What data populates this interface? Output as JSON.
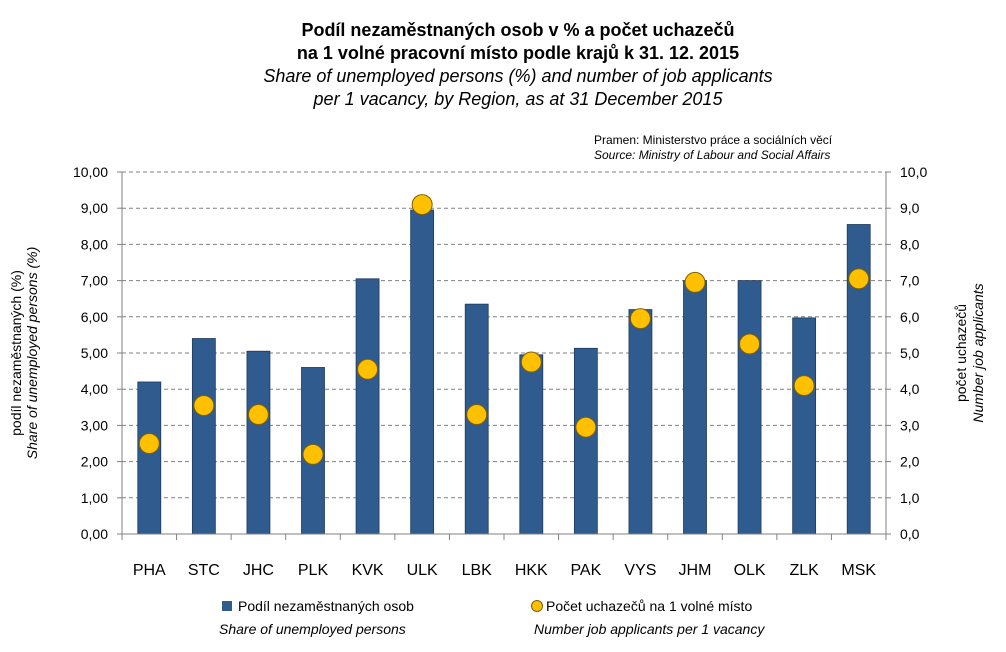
{
  "chart_data": {
    "type": "bar",
    "title": "Podíl nezaměstnaných osob v % a počet uchazečů",
    "title_line2": "na 1 volné pracovní místo podle krajů k 31. 12. 2015",
    "subtitle": "Share of unemployed persons (%) and number of job applicants",
    "subtitle_line2": "per 1 vacancy, by Region, as at 31 December 2015",
    "source_cz": "Pramen: Ministerstvo práce a sociálních věcí",
    "source_en": "Source: Ministry of Labour and Social Affairs",
    "ylabel_left_cz": "podíl nezaměstnaných (%)",
    "ylabel_left_en": "Share of unemployed persons (%)",
    "ylabel_right_cz": "počet uchazečů",
    "ylabel_right_en": "Number job applicants",
    "ylim_left": [
      0,
      10
    ],
    "ylim_right": [
      0,
      10
    ],
    "yticks_left": [
      "0,00",
      "1,00",
      "2,00",
      "3,00",
      "4,00",
      "5,00",
      "6,00",
      "7,00",
      "8,00",
      "9,00",
      "10,00"
    ],
    "yticks_right": [
      "0,0",
      "1,0",
      "2,0",
      "3,0",
      "4,0",
      "5,0",
      "6,0",
      "7,0",
      "8,0",
      "9,0",
      "10,0"
    ],
    "grid": "horizontal dashed",
    "legend_position": "bottom",
    "categories": [
      "PHA",
      "STC",
      "JHC",
      "PLK",
      "KVK",
      "ULK",
      "LBK",
      "HKK",
      "PAK",
      "VYS",
      "JHM",
      "OLK",
      "ZLK",
      "MSK"
    ],
    "series": [
      {
        "name": "Podíl nezaměstnaných osob",
        "name_en": "Share of unemployed persons",
        "type": "bar",
        "axis": "left",
        "color": "#2f5b8e",
        "values": [
          4.2,
          5.4,
          5.05,
          4.6,
          7.05,
          8.95,
          6.35,
          4.95,
          5.13,
          6.2,
          7.0,
          7.0,
          5.97,
          8.55
        ]
      },
      {
        "name": "Počet uchazečů na 1 volné místo",
        "name_en": "Number job applicants per 1 vacancy",
        "type": "scatter",
        "axis": "right",
        "color": "#ffc000",
        "values": [
          2.5,
          3.55,
          3.3,
          2.2,
          4.55,
          9.1,
          3.3,
          4.75,
          2.95,
          5.95,
          6.95,
          5.25,
          4.1,
          7.05
        ]
      }
    ]
  }
}
